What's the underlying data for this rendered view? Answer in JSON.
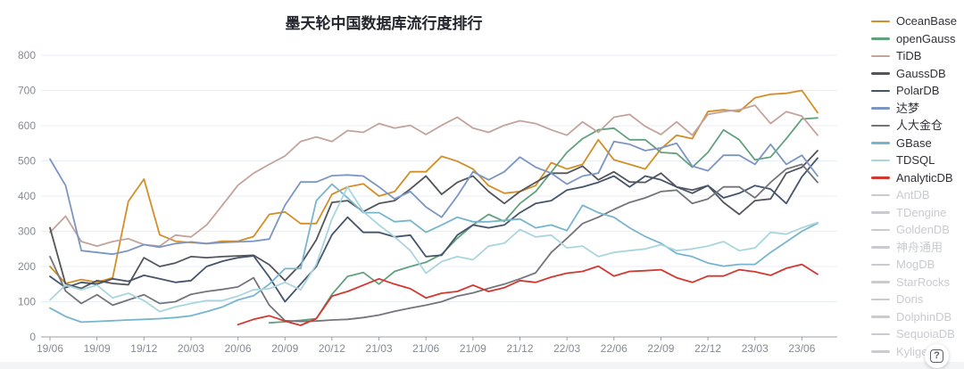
{
  "chart_data": {
    "type": "line",
    "title": "墨天轮中国数据库流行度排行",
    "legend_position": "right",
    "grid": true,
    "ylim": [
      0,
      800
    ],
    "y_tick_labels": [
      800,
      700,
      600,
      500,
      400,
      300,
      200,
      100,
      0
    ],
    "x_tick_labels": [
      "19/06",
      "19/09",
      "19/12",
      "20/03",
      "20/06",
      "20/09",
      "20/12",
      "21/03",
      "21/06",
      "21/09",
      "21/12",
      "22/03",
      "22/06",
      "22/09",
      "22/12",
      "23/03",
      "23/06"
    ],
    "months_per_tick": 3,
    "total_months": 50,
    "series": [
      {
        "name": "OceanBase",
        "color": "#d48e26",
        "disabled": false,
        "start_month": 0,
        "values": [
          200,
          152,
          163,
          155,
          168,
          385,
          448,
          290,
          272,
          268,
          265,
          272,
          272,
          285,
          348,
          355,
          322,
          322,
          405,
          426,
          435,
          400,
          413,
          469,
          469,
          513,
          499,
          477,
          430,
          408,
          413,
          430,
          495,
          477,
          490,
          560,
          503,
          490,
          477,
          534,
          573,
          563,
          640,
          645,
          640,
          679,
          689,
          692,
          700,
          637
        ]
      },
      {
        "name": "openGauss",
        "color": "#61a27d",
        "disabled": false,
        "start_month": 14,
        "values": [
          40,
          43,
          47,
          52,
          121,
          172,
          183,
          150,
          186,
          200,
          212,
          235,
          280,
          318,
          348,
          328,
          379,
          413,
          468,
          524,
          563,
          588,
          593,
          560,
          560,
          524,
          521,
          482,
          524,
          588,
          560,
          503,
          511,
          563,
          619,
          622
        ]
      },
      {
        "name": "TiDB",
        "color": "#c4a39a",
        "disabled": false,
        "start_month": 0,
        "values": [
          297,
          343,
          271,
          258,
          271,
          279,
          262,
          258,
          289,
          284,
          318,
          374,
          431,
          465,
          490,
          514,
          555,
          568,
          555,
          586,
          581,
          606,
          593,
          601,
          575,
          601,
          624,
          593,
          581,
          601,
          614,
          606,
          588,
          573,
          611,
          581,
          624,
          632,
          598,
          575,
          611,
          573,
          632,
          640,
          645,
          658,
          606,
          640,
          627,
          573
        ]
      },
      {
        "name": "GaussDB",
        "color": "#53555c",
        "disabled": false,
        "start_month": 0,
        "values": [
          310,
          150,
          138,
          160,
          152,
          148,
          225,
          200,
          210,
          228,
          225,
          228,
          230,
          232,
          205,
          160,
          206,
          276,
          382,
          387,
          356,
          379,
          387,
          420,
          457,
          405,
          439,
          457,
          413,
          379,
          413,
          439,
          465,
          465,
          485,
          446,
          469,
          440,
          439,
          465,
          426,
          417,
          430,
          382,
          348,
          387,
          392,
          465,
          482,
          529
        ]
      },
      {
        "name": "PolarDB",
        "color": "#44546c",
        "disabled": false,
        "start_month": 0,
        "values": [
          172,
          140,
          155,
          150,
          165,
          158,
          175,
          165,
          155,
          160,
          200,
          215,
          225,
          230,
          170,
          100,
          150,
          200,
          290,
          340,
          297,
          297,
          284,
          289,
          228,
          232,
          289,
          318,
          310,
          318,
          353,
          379,
          387,
          417,
          426,
          439,
          457,
          426,
          457,
          446,
          426,
          408,
          430,
          395,
          408,
          430,
          420,
          379,
          455,
          508
        ]
      },
      {
        "name": "达梦",
        "color": "#7b96c2",
        "disabled": false,
        "start_month": 0,
        "values": [
          505,
          430,
          245,
          240,
          235,
          245,
          262,
          255,
          265,
          270,
          265,
          268,
          270,
          272,
          278,
          374,
          440,
          440,
          458,
          460,
          457,
          426,
          392,
          413,
          369,
          340,
          400,
          469,
          446,
          469,
          511,
          482,
          465,
          434,
          457,
          465,
          555,
          547,
          529,
          537,
          550,
          485,
          472,
          516,
          516,
          490,
          547,
          490,
          516,
          457
        ]
      },
      {
        "name": "人大金仓",
        "color": "#73757b",
        "disabled": false,
        "start_month": 0,
        "values": [
          228,
          130,
          95,
          120,
          90,
          105,
          120,
          95,
          100,
          121,
          129,
          135,
          142,
          168,
          90,
          46,
          44,
          45,
          48,
          50,
          55,
          62,
          73,
          82,
          90,
          100,
          116,
          125,
          138,
          150,
          165,
          182,
          240,
          280,
          322,
          340,
          362,
          382,
          395,
          413,
          417,
          379,
          392,
          426,
          426,
          395,
          439,
          477,
          490,
          439
        ]
      },
      {
        "name": "GBase",
        "color": "#77b5cd",
        "disabled": false,
        "start_month": 0,
        "values": [
          82,
          58,
          42,
          44,
          46,
          48,
          50,
          52,
          55,
          60,
          72,
          85,
          105,
          117,
          150,
          194,
          194,
          387,
          434,
          395,
          353,
          353,
          327,
          331,
          297,
          318,
          340,
          327,
          327,
          331,
          335,
          310,
          318,
          302,
          374,
          353,
          340,
          310,
          285,
          266,
          237,
          228,
          210,
          201,
          206,
          206,
          240,
          270,
          300,
          323
        ]
      },
      {
        "name": "TDSQL",
        "color": "#a9d6de",
        "disabled": false,
        "start_month": 0,
        "values": [
          105,
          147,
          134,
          147,
          111,
          124,
          103,
          72,
          85,
          95,
          103,
          103,
          116,
          134,
          137,
          155,
          134,
          206,
          335,
          426,
          356,
          318,
          284,
          245,
          181,
          214,
          228,
          219,
          258,
          266,
          305,
          284,
          289,
          253,
          258,
          228,
          240,
          245,
          250,
          262,
          245,
          250,
          258,
          271,
          245,
          253,
          297,
          292,
          310,
          325
        ]
      },
      {
        "name": "AnalyticDB",
        "color": "#d23730",
        "disabled": false,
        "start_month": 12,
        "values": [
          35,
          50,
          60,
          45,
          33,
          52,
          116,
          129,
          147,
          165,
          150,
          137,
          111,
          124,
          129,
          147,
          129,
          140,
          160,
          155,
          170,
          181,
          186,
          201,
          173,
          186,
          188,
          191,
          168,
          155,
          173,
          173,
          191,
          185,
          175,
          195,
          206,
          178
        ]
      },
      {
        "name": "AntDB",
        "color": "#c9cbd0",
        "disabled": true,
        "start_month": 0,
        "values": []
      },
      {
        "name": "TDengine",
        "color": "#c9cbd0",
        "disabled": true,
        "start_month": 0,
        "values": []
      },
      {
        "name": "GoldenDB",
        "color": "#c9cbd0",
        "disabled": true,
        "start_month": 0,
        "values": []
      },
      {
        "name": "神舟通用",
        "color": "#c9cbd0",
        "disabled": true,
        "start_month": 0,
        "values": []
      },
      {
        "name": "MogDB",
        "color": "#c9cbd0",
        "disabled": true,
        "start_month": 0,
        "values": []
      },
      {
        "name": "StarRocks",
        "color": "#c9cbd0",
        "disabled": true,
        "start_month": 0,
        "values": []
      },
      {
        "name": "Doris",
        "color": "#c9cbd0",
        "disabled": true,
        "start_month": 0,
        "values": []
      },
      {
        "name": "DolphinDB",
        "color": "#c9cbd0",
        "disabled": true,
        "start_month": 0,
        "values": []
      },
      {
        "name": "SequoiaDB",
        "color": "#c9cbd0",
        "disabled": true,
        "start_month": 0,
        "values": []
      },
      {
        "name": "Kyligence",
        "color": "#c9cbd0",
        "disabled": true,
        "start_month": 0,
        "values": []
      }
    ],
    "axis_colors": {
      "grid": "#e8eef7",
      "axis_line": "#9aa0a6",
      "tick_label": "#868b93"
    }
  },
  "help_button": {
    "label": "?"
  }
}
